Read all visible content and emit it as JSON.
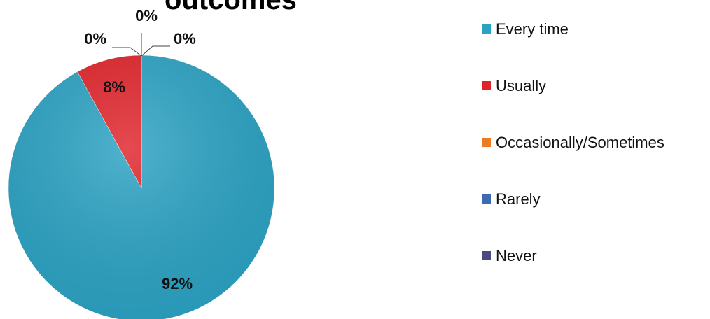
{
  "chart_data": {
    "type": "pie",
    "title": "outcomes",
    "categories": [
      "Every time",
      "Usually",
      "Occasionally/Sometimes",
      "Rarely",
      "Never"
    ],
    "values": [
      92,
      8,
      0,
      0,
      0
    ],
    "labels": [
      "92%",
      "8%",
      "0%",
      "0%",
      "0%"
    ],
    "colors": [
      "#2aa2c3",
      "#e0232a",
      "#ee7a22",
      "#3d6ab2",
      "#4a4a82"
    ],
    "legend": "right"
  }
}
